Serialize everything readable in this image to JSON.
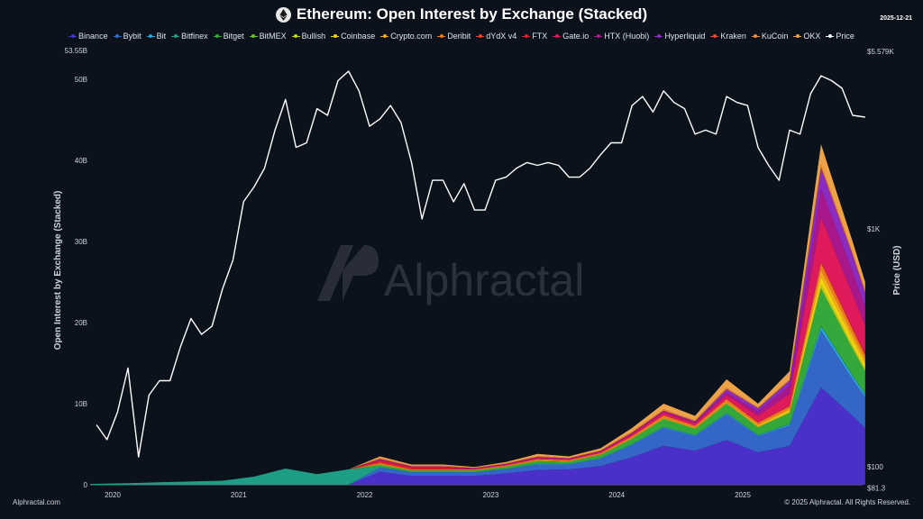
{
  "header": {
    "title": "Ethereum: Open Interest by Exchange (Stacked)",
    "date": "2025-12-21",
    "icon": "ethereum-logo-icon"
  },
  "watermark": {
    "text": "Alphractal"
  },
  "footer": {
    "left": "Alphractal.com",
    "right": "© 2025 Alphractal. All Rights Reserved."
  },
  "chart_data": {
    "type": "area",
    "stacked": true,
    "title": "Ethereum: Open Interest by Exchange (Stacked)",
    "ylabel": "Open Interest by Exchange (Stacked)",
    "y2label": "Price (USD)",
    "ylim": [
      0,
      53.55
    ],
    "y_unit": "B",
    "y_ticks": [
      "0",
      "10B",
      "20B",
      "30B",
      "40B",
      "50B",
      "53.55B"
    ],
    "y2_scale": "log",
    "y2lim": [
      81.3,
      5579
    ],
    "y2_ticks": [
      "$81.3",
      "$100",
      "$1K",
      "$5.579K"
    ],
    "x_ticks": [
      "2020",
      "2021",
      "2022",
      "2023",
      "2024",
      "2025"
    ],
    "grid": false,
    "legend": "top",
    "x": [
      "2019-11",
      "2020-02",
      "2020-05",
      "2020-08",
      "2020-11",
      "2021-02",
      "2021-05",
      "2021-08",
      "2021-11",
      "2022-02",
      "2022-05",
      "2022-08",
      "2022-11",
      "2023-02",
      "2023-05",
      "2023-08",
      "2023-11",
      "2024-02",
      "2024-05",
      "2024-08",
      "2024-11",
      "2025-02",
      "2025-05",
      "2025-08",
      "2025-11",
      "2025-12-21"
    ],
    "series": [
      {
        "name": "Binance",
        "color": "#4a30c8",
        "values": [
          0,
          0,
          0,
          0,
          0,
          0,
          0,
          0,
          0,
          1.6,
          1.1,
          1.1,
          1.1,
          1.4,
          1.8,
          1.9,
          2.3,
          3.4,
          4.8,
          4.2,
          5.5,
          4.0,
          4.8,
          12.0,
          8.5,
          7.0
        ]
      },
      {
        "name": "Bybit",
        "color": "#3466c8",
        "values": [
          0,
          0,
          0,
          0,
          0,
          0,
          0,
          0,
          0,
          0.5,
          0.4,
          0.4,
          0.4,
          0.5,
          0.7,
          0.6,
          0.9,
          1.5,
          2.2,
          1.8,
          3.2,
          2.0,
          2.5,
          7.0,
          4.5,
          3.8
        ]
      },
      {
        "name": "Bit",
        "color": "#2aa4dc",
        "values": [
          0,
          0,
          0,
          0,
          0,
          0,
          0,
          0,
          0,
          0.05,
          0.03,
          0.03,
          0.03,
          0.04,
          0.05,
          0.04,
          0.05,
          0.08,
          0.1,
          0.08,
          0.1,
          0.1,
          0.15,
          0.5,
          0.4,
          0.35
        ]
      },
      {
        "name": "Bitfinex",
        "color": "#1f9e86",
        "values": [
          0.1,
          0.2,
          0.3,
          0.4,
          0.5,
          1.0,
          2.0,
          1.3,
          1.9,
          0.05,
          0.03,
          0.03,
          0.03,
          0.03,
          0.04,
          0.03,
          0.04,
          0.05,
          0.06,
          0.05,
          0.06,
          0.05,
          0.06,
          0.1,
          0.08,
          0.07
        ]
      },
      {
        "name": "Bitget",
        "color": "#35a83c",
        "values": [
          0,
          0,
          0,
          0,
          0,
          0,
          0,
          0,
          0,
          0.2,
          0.15,
          0.15,
          0.15,
          0.2,
          0.3,
          0.25,
          0.35,
          0.6,
          0.9,
          0.75,
          1.1,
          0.9,
          1.3,
          4.5,
          3.2,
          2.7
        ]
      },
      {
        "name": "BitMEX",
        "color": "#6cc42a",
        "values": [
          0,
          0,
          0,
          0,
          0,
          0,
          0,
          0,
          0,
          0.1,
          0.06,
          0.06,
          0.06,
          0.06,
          0.08,
          0.06,
          0.07,
          0.08,
          0.1,
          0.08,
          0.1,
          0.06,
          0.07,
          0.2,
          0.15,
          0.12
        ]
      },
      {
        "name": "Bullish",
        "color": "#c2d11e",
        "values": [
          0,
          0,
          0,
          0,
          0,
          0,
          0,
          0,
          0,
          0,
          0,
          0,
          0,
          0,
          0,
          0,
          0,
          0,
          0,
          0,
          0,
          0.05,
          0.1,
          0.4,
          0.3,
          0.25
        ]
      },
      {
        "name": "Coinbase",
        "color": "#f1d40e",
        "values": [
          0,
          0,
          0,
          0,
          0,
          0,
          0,
          0,
          0,
          0,
          0,
          0,
          0,
          0,
          0,
          0,
          0,
          0,
          0,
          0,
          0,
          0.1,
          0.2,
          1.0,
          0.8,
          0.7
        ]
      },
      {
        "name": "Crypto.com",
        "color": "#f5a820",
        "values": [
          0,
          0,
          0,
          0,
          0,
          0,
          0,
          0,
          0,
          0.05,
          0.03,
          0.03,
          0.03,
          0.04,
          0.05,
          0.04,
          0.05,
          0.08,
          0.1,
          0.08,
          0.15,
          0.15,
          0.2,
          0.8,
          0.6,
          0.5
        ]
      },
      {
        "name": "Deribit",
        "color": "#ef7a1c",
        "values": [
          0,
          0,
          0,
          0,
          0,
          0,
          0,
          0,
          0,
          0.15,
          0.1,
          0.1,
          0.1,
          0.12,
          0.15,
          0.12,
          0.15,
          0.2,
          0.3,
          0.25,
          0.35,
          0.25,
          0.3,
          0.8,
          0.6,
          0.5
        ]
      },
      {
        "name": "dYdX v4",
        "color": "#e6481c",
        "values": [
          0,
          0,
          0,
          0,
          0,
          0,
          0,
          0,
          0,
          0,
          0,
          0,
          0,
          0,
          0,
          0,
          0,
          0,
          0,
          0,
          0,
          0.05,
          0.05,
          0.2,
          0.15,
          0.12
        ]
      },
      {
        "name": "FTX",
        "color": "#e8202c",
        "values": [
          0,
          0,
          0,
          0,
          0,
          0,
          0,
          0,
          0,
          0.25,
          0.2,
          0.2,
          0,
          0,
          0,
          0,
          0,
          0,
          0,
          0,
          0,
          0,
          0,
          0,
          0,
          0
        ]
      },
      {
        "name": "Gate.io",
        "color": "#de1a5a",
        "values": [
          0,
          0,
          0,
          0,
          0,
          0,
          0,
          0,
          0,
          0.1,
          0.08,
          0.08,
          0.08,
          0.1,
          0.15,
          0.12,
          0.15,
          0.25,
          0.35,
          0.3,
          0.5,
          0.8,
          1.5,
          5.5,
          4.2,
          3.5
        ]
      },
      {
        "name": "HTX (Huobi)",
        "color": "#a8188a",
        "values": [
          0,
          0,
          0,
          0,
          0,
          0,
          0,
          0,
          0,
          0.1,
          0.07,
          0.07,
          0.06,
          0.08,
          0.1,
          0.08,
          0.1,
          0.15,
          0.2,
          0.15,
          0.3,
          0.5,
          1.0,
          3.5,
          2.8,
          2.3
        ]
      },
      {
        "name": "Hyperliquid",
        "color": "#8a2cc2",
        "values": [
          0,
          0,
          0,
          0,
          0,
          0,
          0,
          0,
          0,
          0,
          0,
          0,
          0,
          0,
          0,
          0,
          0,
          0,
          0,
          0.05,
          0.4,
          0.4,
          0.6,
          2.5,
          2.0,
          1.7
        ]
      },
      {
        "name": "Kraken",
        "color": "#e6483c",
        "values": [
          0,
          0,
          0,
          0,
          0,
          0,
          0,
          0,
          0,
          0.05,
          0.03,
          0.03,
          0.03,
          0.03,
          0.04,
          0.03,
          0.04,
          0.05,
          0.06,
          0.05,
          0.07,
          0.05,
          0.06,
          0.2,
          0.15,
          0.12
        ]
      },
      {
        "name": "KuCoin",
        "color": "#ef8a3c",
        "values": [
          0,
          0,
          0,
          0,
          0,
          0,
          0,
          0,
          0,
          0.1,
          0.07,
          0.07,
          0.03,
          0.05,
          0.08,
          0.05,
          0.06,
          0.1,
          0.13,
          0.1,
          0.15,
          0.1,
          0.1,
          0.3,
          0.22,
          0.2
        ]
      },
      {
        "name": "OKX",
        "color": "#eea248",
        "values": [
          0,
          0,
          0,
          0,
          0,
          0,
          0,
          0,
          0,
          0.2,
          0.15,
          0.15,
          0.1,
          0.15,
          0.26,
          0.18,
          0.24,
          0.46,
          0.7,
          0.56,
          1.02,
          0.44,
          1.01,
          2.5,
          1.35,
          1.07
        ]
      }
    ],
    "price": {
      "name": "Price",
      "color": "#ffffff",
      "x": [
        "2019-11",
        "2019-12",
        "2020-01",
        "2020-02",
        "2020-03",
        "2020-04",
        "2020-05",
        "2020-06",
        "2020-07",
        "2020-08",
        "2020-09",
        "2020-10",
        "2020-11",
        "2020-12",
        "2021-01",
        "2021-02",
        "2021-03",
        "2021-04",
        "2021-05",
        "2021-06",
        "2021-07",
        "2021-08",
        "2021-09",
        "2021-10",
        "2021-11",
        "2021-12",
        "2022-01",
        "2022-02",
        "2022-03",
        "2022-04",
        "2022-05",
        "2022-06",
        "2022-07",
        "2022-08",
        "2022-09",
        "2022-10",
        "2022-11",
        "2022-12",
        "2023-01",
        "2023-02",
        "2023-03",
        "2023-04",
        "2023-05",
        "2023-06",
        "2023-07",
        "2023-08",
        "2023-09",
        "2023-10",
        "2023-11",
        "2023-12",
        "2024-01",
        "2024-02",
        "2024-03",
        "2024-04",
        "2024-05",
        "2024-06",
        "2024-07",
        "2024-08",
        "2024-09",
        "2024-10",
        "2024-11",
        "2024-12",
        "2025-01",
        "2025-02",
        "2025-03",
        "2025-04",
        "2025-05",
        "2025-06",
        "2025-07",
        "2025-08",
        "2025-09",
        "2025-10",
        "2025-11",
        "2025-12-21"
      ],
      "values": [
        150,
        130,
        170,
        260,
        110,
        200,
        230,
        230,
        320,
        420,
        360,
        390,
        560,
        740,
        1300,
        1500,
        1800,
        2600,
        3500,
        2200,
        2300,
        3200,
        3000,
        4200,
        4600,
        3800,
        2700,
        2900,
        3300,
        2800,
        1900,
        1100,
        1600,
        1600,
        1300,
        1550,
        1200,
        1200,
        1600,
        1650,
        1800,
        1900,
        1850,
        1900,
        1850,
        1650,
        1650,
        1800,
        2050,
        2300,
        2300,
        3300,
        3600,
        3100,
        3800,
        3400,
        3200,
        2500,
        2600,
        2500,
        3600,
        3400,
        3300,
        2200,
        1850,
        1600,
        2600,
        2500,
        3700,
        4400,
        4200,
        3900,
        3000,
        2950
      ]
    }
  }
}
